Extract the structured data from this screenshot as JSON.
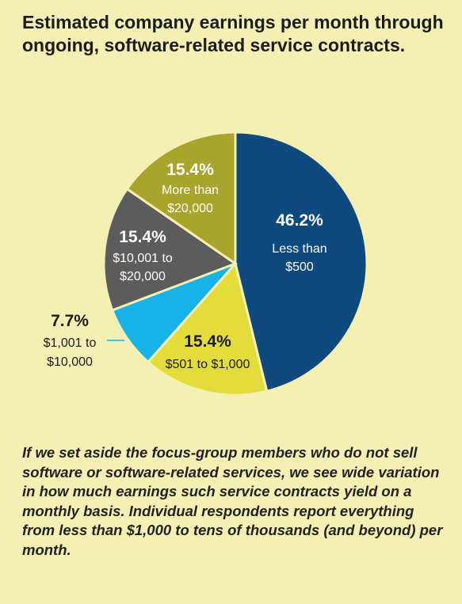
{
  "title": "Estimated company earnings per month through ongoing, software-related service contracts.",
  "caption": "If we set aside the focus-group members who do not sell software or software-related services, we see wide variation in how much earnings such service contracts yield on a monthly basis. Individual respondents report everything from less than $1,000 to tens of thousands (and beyond) per month.",
  "chart_data": {
    "type": "pie",
    "title": "Estimated company earnings per month through ongoing, software-related service contracts.",
    "slices": [
      {
        "pct_label": "46.2%",
        "lines": [
          "Less than",
          "$500"
        ],
        "value": 46.2,
        "color": "#0e4a7d",
        "text_color": "#ffffff"
      },
      {
        "pct_label": "15.4%",
        "lines": [
          "$501 to $1,000"
        ],
        "value": 15.4,
        "color": "#e3dc3a",
        "text_color": "#1c1c1c"
      },
      {
        "pct_label": "7.7%",
        "lines": [
          "$1,001 to",
          "$10,000"
        ],
        "value": 7.7,
        "color": "#17b2e8",
        "text_color": "#1c1c1c"
      },
      {
        "pct_label": "15.4%",
        "lines": [
          "$10,001 to",
          "$20,000"
        ],
        "value": 15.4,
        "color": "#5d5c5c",
        "text_color": "#ffffff"
      },
      {
        "pct_label": "15.4%",
        "lines": [
          "More than",
          "$20,000"
        ],
        "value": 15.4,
        "color": "#a9a52c",
        "text_color": "#ffffff"
      }
    ]
  }
}
